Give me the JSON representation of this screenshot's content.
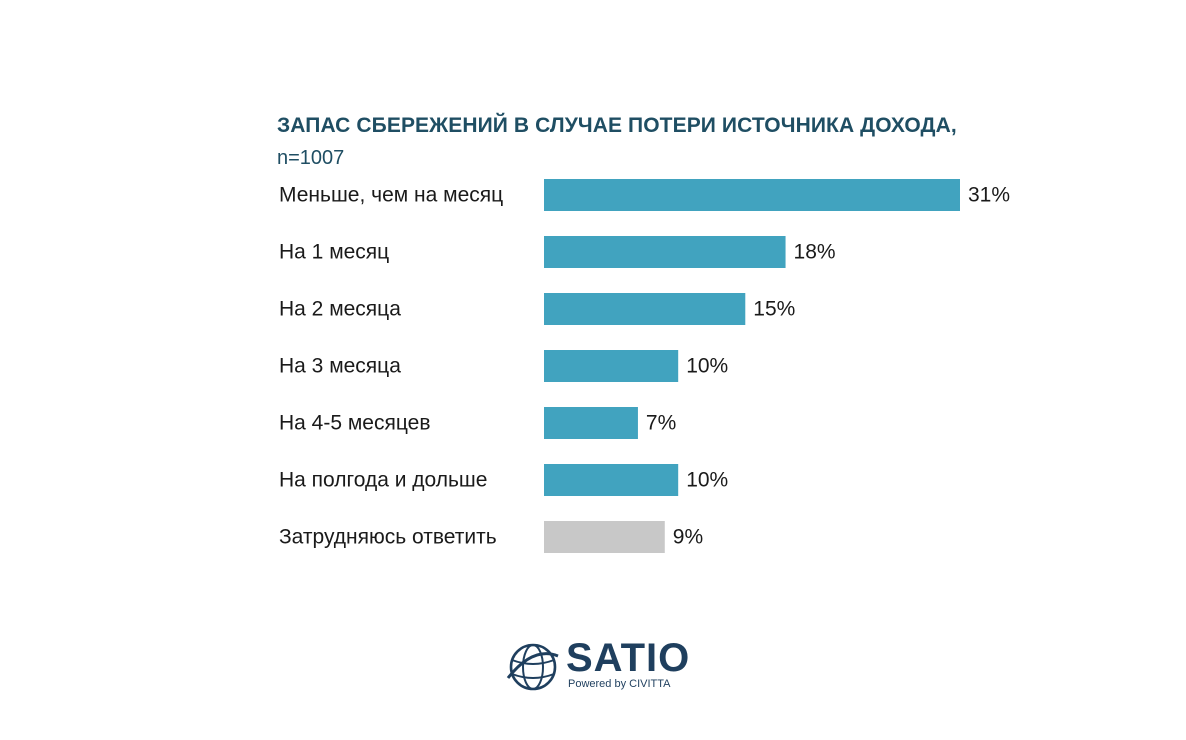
{
  "chart_data": {
    "type": "bar",
    "orientation": "horizontal",
    "title": "ЗАПАС СБЕРЕЖЕНИЙ В СЛУЧАЕ ПОТЕРИ ИСТОЧНИКА ДОХОДА,",
    "subtitle": "n=1007",
    "categories": [
      "Меньше, чем на месяц",
      "На 1 месяц",
      "На 2 месяца",
      "На 3 месяца",
      "На 4-5 месяцев",
      "На полгода и дольше",
      "Затрудняюсь ответить"
    ],
    "values": [
      31,
      18,
      15,
      10,
      7,
      10,
      9
    ],
    "value_labels": [
      "31%",
      "18%",
      "15%",
      "10%",
      "7%",
      "10%",
      "9%"
    ],
    "bar_colors": [
      "#41a3bf",
      "#41a3bf",
      "#41a3bf",
      "#41a3bf",
      "#41a3bf",
      "#41a3bf",
      "#c8c8c8"
    ],
    "xlim": [
      0,
      31
    ],
    "grid": false,
    "legend": "none"
  },
  "logo": {
    "wordmark": "SATIO",
    "tagline": "Powered by CIVITTA",
    "icon": "globe-icon",
    "color": "#1f3f5e"
  }
}
